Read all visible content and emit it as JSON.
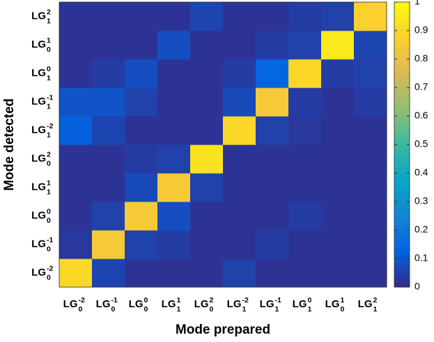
{
  "chart_data": {
    "type": "heatmap",
    "xlabel": "Mode prepared",
    "ylabel": "Mode detected",
    "x_categories": [
      {
        "text": "LG",
        "sup": "-2",
        "sub": "0"
      },
      {
        "text": "LG",
        "sup": "-1",
        "sub": "0"
      },
      {
        "text": "LG",
        "sup": "0",
        "sub": "0"
      },
      {
        "text": "LG",
        "sup": "1",
        "sub": "1"
      },
      {
        "text": "LG",
        "sup": "2",
        "sub": "0"
      },
      {
        "text": "LG",
        "sup": "-2",
        "sub": "1"
      },
      {
        "text": "LG",
        "sup": "-1",
        "sub": "1"
      },
      {
        "text": "LG",
        "sup": "0",
        "sub": "1"
      },
      {
        "text": "LG",
        "sup": "1",
        "sub": "0"
      },
      {
        "text": "LG",
        "sup": "2",
        "sub": "1"
      }
    ],
    "y_categories": [
      {
        "text": "LG",
        "sup": "-2",
        "sub": "0"
      },
      {
        "text": "LG",
        "sup": "-1",
        "sub": "0"
      },
      {
        "text": "LG",
        "sup": "0",
        "sub": "0"
      },
      {
        "text": "LG",
        "sup": "1",
        "sub": "1"
      },
      {
        "text": "LG",
        "sup": "2",
        "sub": "0"
      },
      {
        "text": "LG",
        "sup": "-2",
        "sub": "1"
      },
      {
        "text": "LG",
        "sup": "-1",
        "sub": "1"
      },
      {
        "text": "LG",
        "sup": "0",
        "sub": "1"
      },
      {
        "text": "LG",
        "sup": "1",
        "sub": "0"
      },
      {
        "text": "LG",
        "sup": "2",
        "sub": "1"
      }
    ],
    "z": [
      [
        0.9,
        0.06,
        0.02,
        0.02,
        0.02,
        0.05,
        0.02,
        0.02,
        0.02,
        0.02
      ],
      [
        0.03,
        0.85,
        0.05,
        0.04,
        0.02,
        0.02,
        0.04,
        0.02,
        0.02,
        0.02
      ],
      [
        0.02,
        0.05,
        0.85,
        0.08,
        0.02,
        0.02,
        0.02,
        0.04,
        0.02,
        0.02
      ],
      [
        0.02,
        0.02,
        0.07,
        0.85,
        0.05,
        0.02,
        0.02,
        0.02,
        0.02,
        0.02
      ],
      [
        0.02,
        0.02,
        0.04,
        0.05,
        0.93,
        0.02,
        0.02,
        0.02,
        0.02,
        0.02
      ],
      [
        0.12,
        0.06,
        0.02,
        0.02,
        0.02,
        0.9,
        0.05,
        0.03,
        0.02,
        0.02
      ],
      [
        0.09,
        0.09,
        0.05,
        0.02,
        0.02,
        0.07,
        0.85,
        0.04,
        0.02,
        0.04
      ],
      [
        0.02,
        0.04,
        0.08,
        0.02,
        0.02,
        0.04,
        0.14,
        0.9,
        0.04,
        0.05
      ],
      [
        0.02,
        0.02,
        0.02,
        0.08,
        0.02,
        0.02,
        0.04,
        0.05,
        0.95,
        0.06
      ],
      [
        0.02,
        0.02,
        0.02,
        0.02,
        0.06,
        0.02,
        0.02,
        0.04,
        0.05,
        0.88
      ]
    ],
    "clim": [
      0,
      1
    ],
    "cticks": [
      0,
      0.1,
      0.2,
      0.3,
      0.4,
      0.5,
      0.6,
      0.7,
      0.8,
      0.9,
      1
    ],
    "colormap": [
      "#352a87",
      "#0363e1",
      "#1485d4",
      "#06a7c6",
      "#38b99e",
      "#92bf73",
      "#d9ba56",
      "#fcce2e",
      "#f9fb0e"
    ]
  }
}
